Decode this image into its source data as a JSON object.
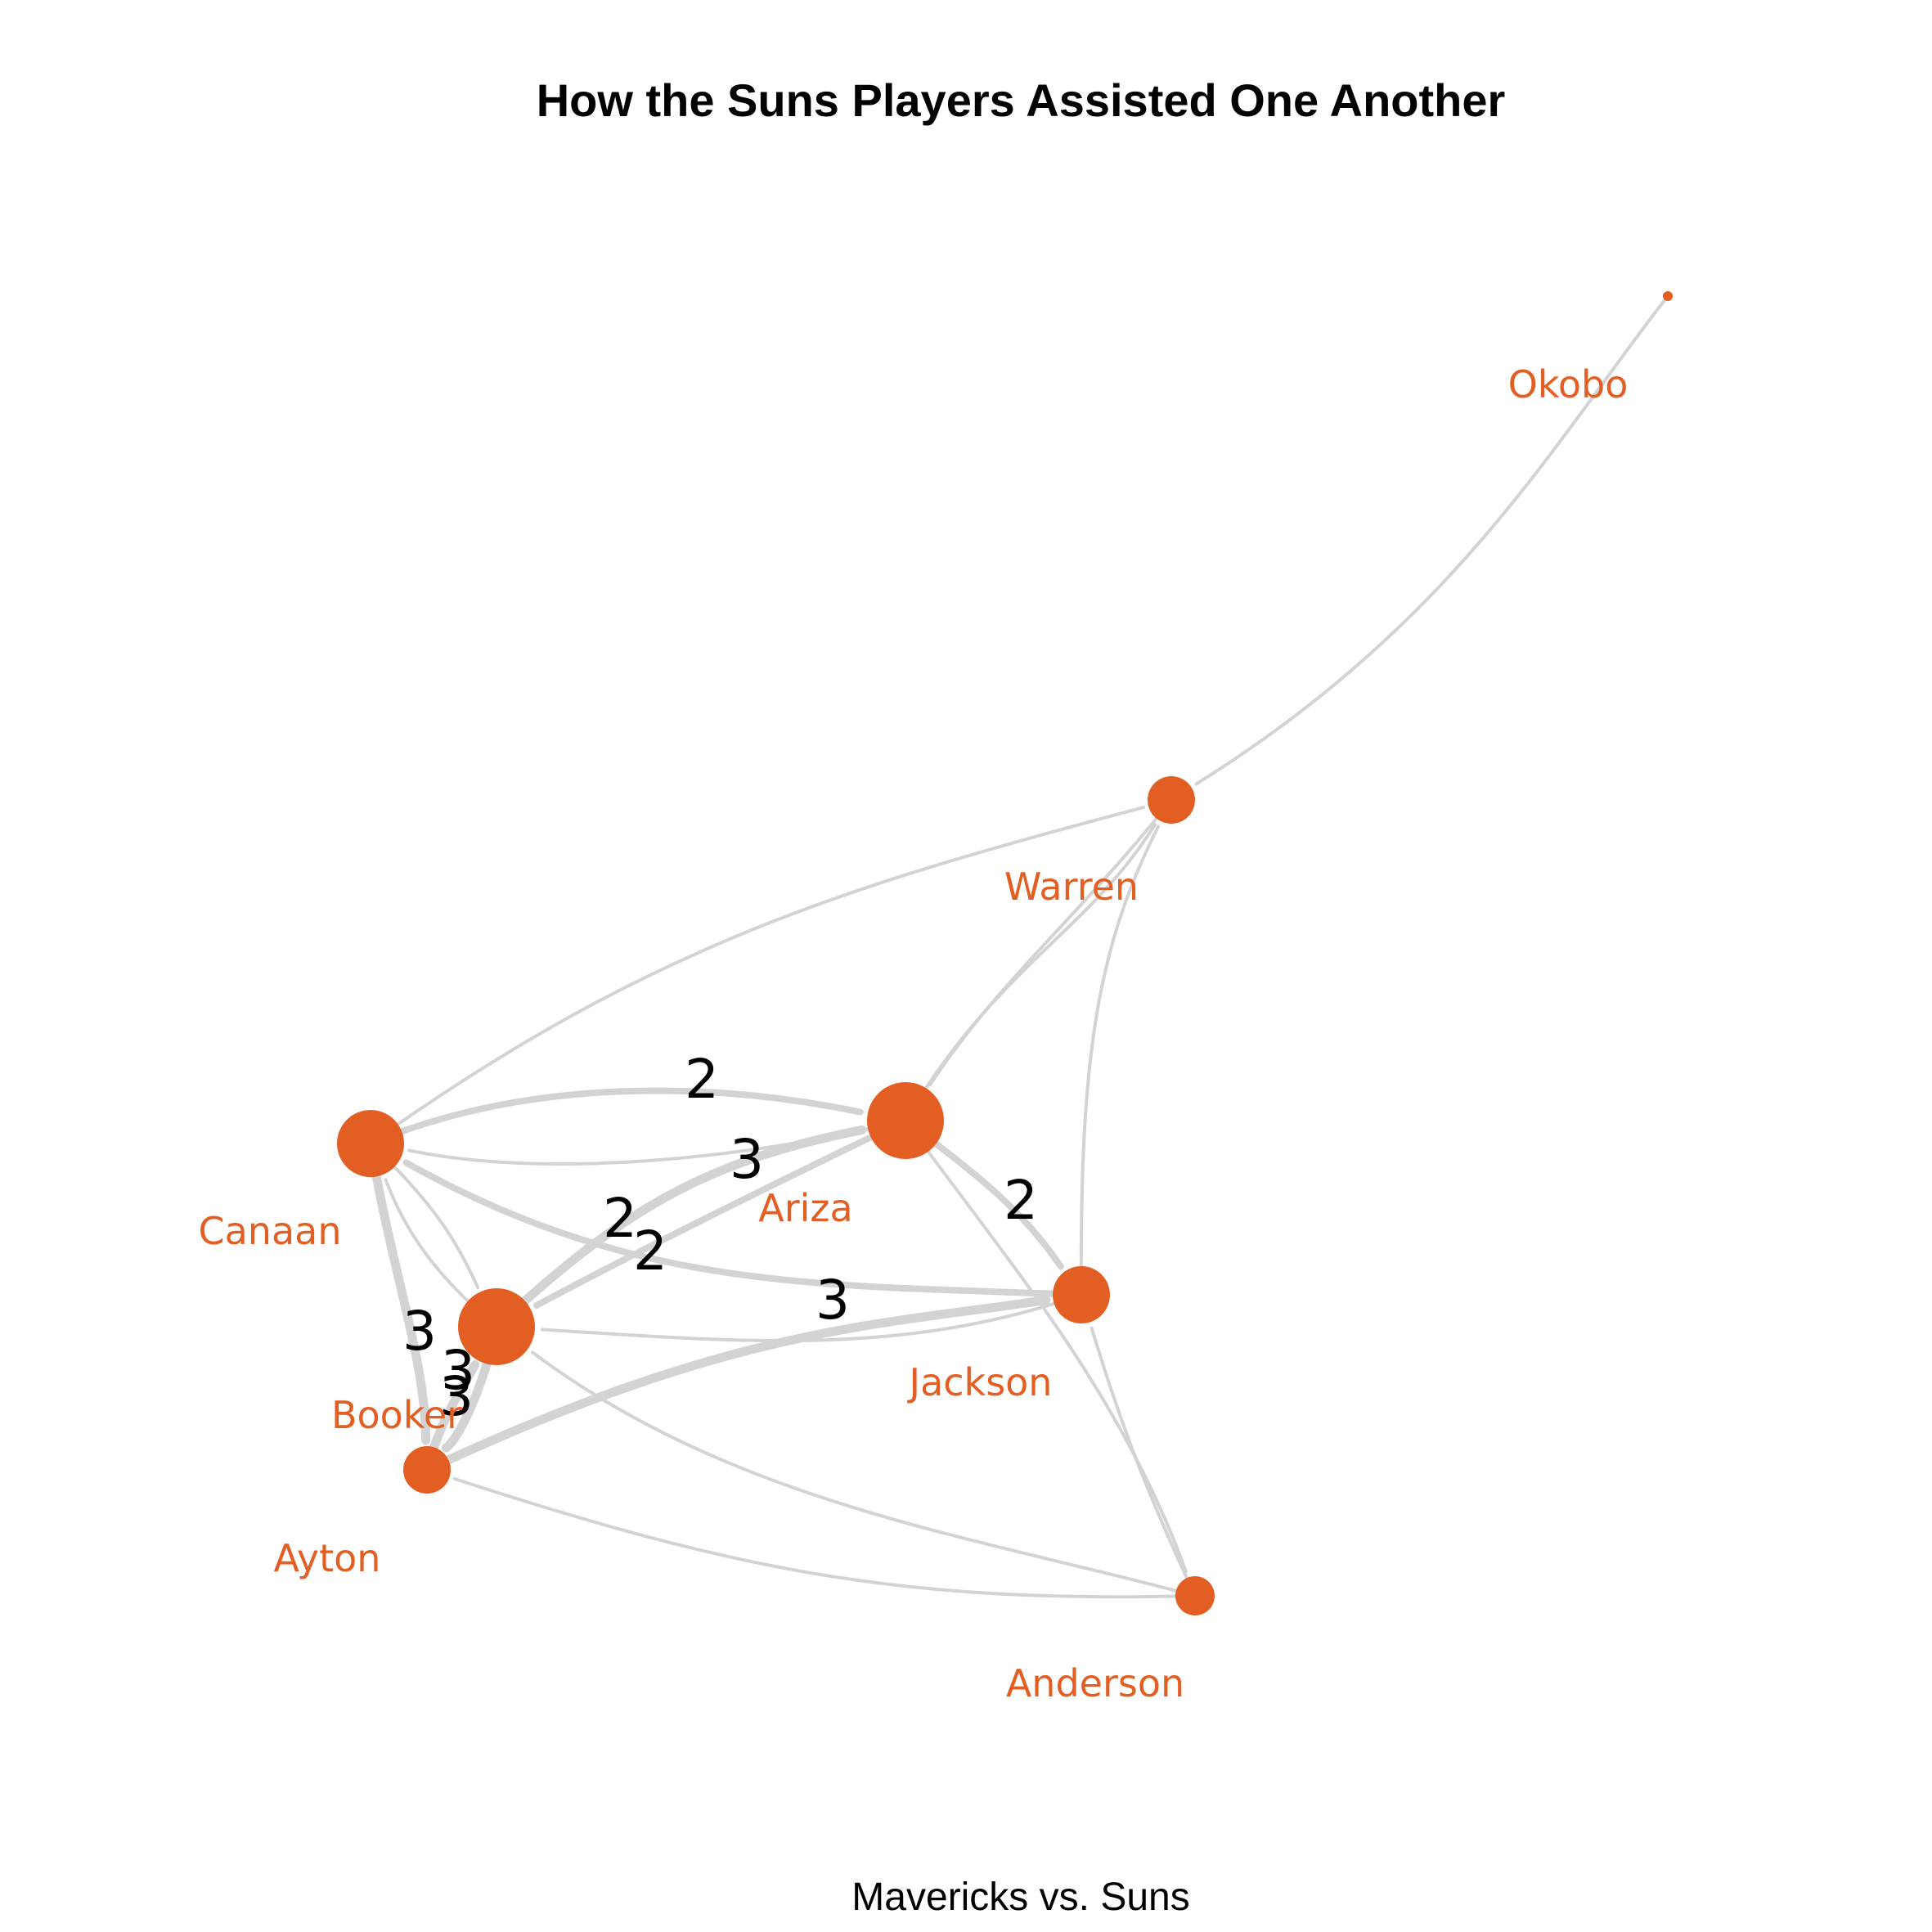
{
  "title": "How the Suns Players Assisted One Another",
  "caption": "Mavericks vs. Suns",
  "colors": {
    "node": "#E25E22",
    "label": "#E25E22",
    "edge": "#D3D3D3",
    "edge_label": "#000000",
    "title": "#000000"
  },
  "nodes": [
    {
      "id": "okobo",
      "label": "Okobo"
    },
    {
      "id": "warren",
      "label": "Warren"
    },
    {
      "id": "ariza",
      "label": "Ariza"
    },
    {
      "id": "canaan",
      "label": "Canaan"
    },
    {
      "id": "booker",
      "label": "Booker"
    },
    {
      "id": "jackson",
      "label": "Jackson"
    },
    {
      "id": "ayton",
      "label": "Ayton"
    },
    {
      "id": "anderson",
      "label": "Anderson"
    }
  ],
  "edges": [
    {
      "from": "okobo",
      "to": "warren",
      "assists": 1
    },
    {
      "from": "canaan",
      "to": "warren",
      "assists": 1
    },
    {
      "from": "warren",
      "to": "ariza",
      "assists": 1
    },
    {
      "from": "ariza",
      "to": "warren",
      "assists": 1
    },
    {
      "from": "jackson",
      "to": "warren",
      "assists": 1
    },
    {
      "from": "canaan",
      "to": "ariza",
      "assists": 2,
      "label": "2"
    },
    {
      "from": "ariza",
      "to": "canaan",
      "assists": 1
    },
    {
      "from": "booker",
      "to": "ariza",
      "assists": 3,
      "label": "3"
    },
    {
      "from": "ariza",
      "to": "booker",
      "assists": 2,
      "label": "2"
    },
    {
      "from": "jackson",
      "to": "canaan",
      "assists": 2,
      "label": "2"
    },
    {
      "from": "ariza",
      "to": "jackson",
      "assists": 2,
      "label": "2"
    },
    {
      "from": "canaan",
      "to": "booker",
      "assists": 1
    },
    {
      "from": "booker",
      "to": "canaan",
      "assists": 1
    },
    {
      "from": "canaan",
      "to": "ayton",
      "assists": 3,
      "label": "3"
    },
    {
      "from": "ayton",
      "to": "booker",
      "assists": 3,
      "label": "3"
    },
    {
      "from": "booker",
      "to": "ayton",
      "assists": 3,
      "label": "3"
    },
    {
      "from": "ayton",
      "to": "jackson",
      "assists": 3,
      "label": "3"
    },
    {
      "from": "jackson",
      "to": "booker",
      "assists": 1
    },
    {
      "from": "ariza",
      "to": "anderson",
      "assists": 1
    },
    {
      "from": "anderson",
      "to": "jackson",
      "assists": 1
    },
    {
      "from": "anderson",
      "to": "booker",
      "assists": 1
    },
    {
      "from": "anderson",
      "to": "ayton",
      "assists": 1
    }
  ]
}
